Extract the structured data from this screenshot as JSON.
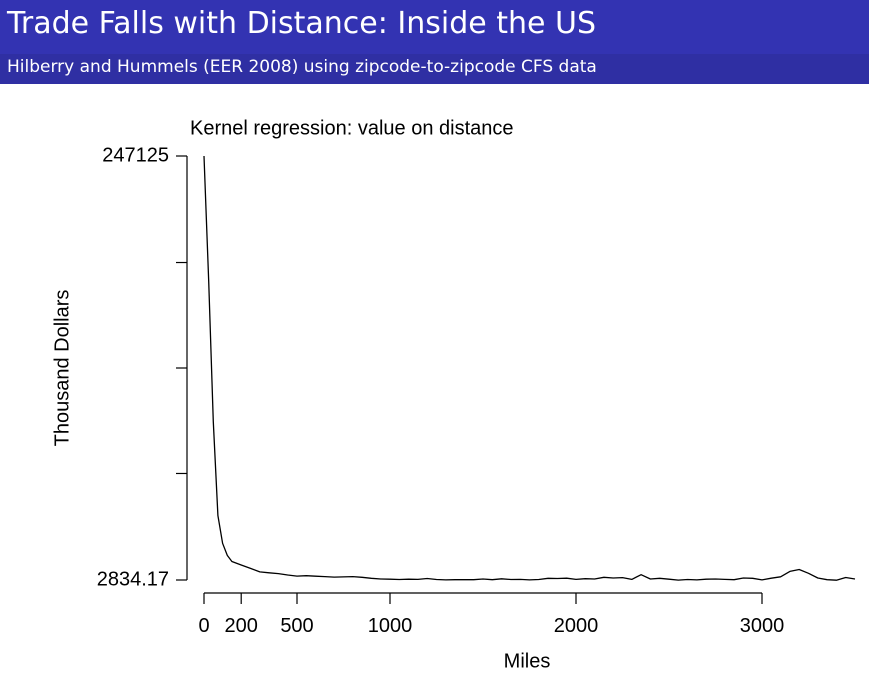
{
  "slide": {
    "title": "Trade Falls with Distance: Inside the US",
    "subtitle": "Hilberry and Hummels (EER 2008) using zipcode-to-zipcode CFS data"
  },
  "chart_data": {
    "type": "line",
    "title": "Kernel regression: value on distance",
    "xlabel": "Miles",
    "ylabel": "Thousand Dollars",
    "xlim": [
      0,
      3500
    ],
    "ylim": [
      2834.17,
      247125
    ],
    "x_ticks": [
      {
        "value": 0,
        "label": "0"
      },
      {
        "value": 200,
        "label": "200"
      },
      {
        "value": 500,
        "label": "500"
      },
      {
        "value": 1000,
        "label": "1000"
      },
      {
        "value": 2000,
        "label": "2000"
      },
      {
        "value": 3000,
        "label": "3000"
      }
    ],
    "y_ticks": [
      {
        "value": 247125,
        "label": "247125"
      },
      {
        "value": 185752,
        "label": ""
      },
      {
        "value": 124980,
        "label": ""
      },
      {
        "value": 64207,
        "label": ""
      },
      {
        "value": 2834.17,
        "label": "2834.17"
      }
    ],
    "grid": false,
    "series": [
      {
        "points": [
          [
            0,
            247125
          ],
          [
            25,
            175000
          ],
          [
            50,
            94000
          ],
          [
            75,
            40000
          ],
          [
            100,
            24000
          ],
          [
            125,
            17000
          ],
          [
            150,
            13500
          ],
          [
            200,
            11500
          ],
          [
            250,
            9500
          ],
          [
            300,
            7500
          ],
          [
            350,
            7000
          ],
          [
            400,
            6500
          ],
          [
            450,
            5700
          ],
          [
            500,
            5100
          ],
          [
            550,
            5300
          ],
          [
            600,
            5000
          ],
          [
            650,
            4800
          ],
          [
            700,
            4500
          ],
          [
            750,
            4600
          ],
          [
            800,
            4800
          ],
          [
            850,
            4400
          ],
          [
            900,
            3800
          ],
          [
            950,
            3400
          ],
          [
            1000,
            3300
          ],
          [
            1050,
            3100
          ],
          [
            1100,
            3300
          ],
          [
            1150,
            3200
          ],
          [
            1200,
            3700
          ],
          [
            1250,
            3100
          ],
          [
            1300,
            2900
          ],
          [
            1350,
            3000
          ],
          [
            1400,
            3000
          ],
          [
            1450,
            3000
          ],
          [
            1500,
            3400
          ],
          [
            1550,
            3000
          ],
          [
            1600,
            3500
          ],
          [
            1650,
            3100
          ],
          [
            1700,
            3200
          ],
          [
            1750,
            2900
          ],
          [
            1800,
            3100
          ],
          [
            1850,
            3800
          ],
          [
            1900,
            3700
          ],
          [
            1950,
            3900
          ],
          [
            2000,
            3200
          ],
          [
            2050,
            3600
          ],
          [
            2100,
            3400
          ],
          [
            2150,
            4400
          ],
          [
            2200,
            4000
          ],
          [
            2250,
            4200
          ],
          [
            2300,
            3200
          ],
          [
            2350,
            5900
          ],
          [
            2400,
            3400
          ],
          [
            2450,
            3800
          ],
          [
            2500,
            3300
          ],
          [
            2550,
            2800
          ],
          [
            2600,
            3100
          ],
          [
            2650,
            2900
          ],
          [
            2700,
            3300
          ],
          [
            2750,
            3400
          ],
          [
            2800,
            3200
          ],
          [
            2850,
            3000
          ],
          [
            2900,
            4000
          ],
          [
            2950,
            3800
          ],
          [
            3000,
            2900
          ],
          [
            3050,
            3900
          ],
          [
            3100,
            4700
          ],
          [
            3150,
            7800
          ],
          [
            3200,
            8900
          ],
          [
            3250,
            6700
          ],
          [
            3300,
            4000
          ],
          [
            3350,
            3000
          ],
          [
            3400,
            2700
          ],
          [
            3450,
            4300
          ],
          [
            3500,
            3400
          ]
        ]
      }
    ]
  }
}
